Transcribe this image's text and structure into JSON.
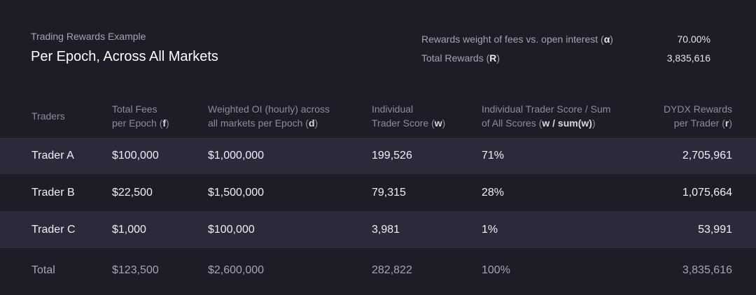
{
  "header": {
    "subtitle": "Trading Rewards Example",
    "title": "Per Epoch, Across All Markets",
    "weight_label_prefix": "Rewards weight of fees vs. open interest (",
    "weight_symbol": "α",
    "weight_label_suffix": ")",
    "weight_value": "70.00%",
    "total_rewards_label_prefix": "Total Rewards (",
    "total_rewards_symbol": "R",
    "total_rewards_label_suffix": ")",
    "total_rewards_value": "3,835,616"
  },
  "columns": {
    "traders": "Traders",
    "fees_line1": "Total Fees",
    "fees_line2_prefix": "per Epoch (",
    "fees_symbol": "f",
    "fees_line2_suffix": ")",
    "oi_line1": "Weighted OI (hourly) across",
    "oi_line2_prefix": "all markets per Epoch (",
    "oi_symbol": "d",
    "oi_line2_suffix": ")",
    "score_line1": "Individual",
    "score_line2_prefix": "Trader Score (",
    "score_symbol": "w",
    "score_line2_suffix": ")",
    "share_line1": "Individual Trader Score / Sum",
    "share_line2_prefix": "of All Scores (",
    "share_symbol": "w / sum(w)",
    "share_line2_suffix": ")",
    "rewards_line1": "DYDX Rewards",
    "rewards_line2_prefix": "per Trader (",
    "rewards_symbol": "r",
    "rewards_line2_suffix": ")"
  },
  "rows": [
    {
      "trader": "Trader A",
      "fees": "$100,000",
      "oi": "$1,000,000",
      "score": "199,526",
      "share": "71%",
      "rewards": "2,705,961"
    },
    {
      "trader": "Trader B",
      "fees": "$22,500",
      "oi": "$1,500,000",
      "score": "79,315",
      "share": "28%",
      "rewards": "1,075,664"
    },
    {
      "trader": "Trader C",
      "fees": "$1,000",
      "oi": "$100,000",
      "score": "3,981",
      "share": "1%",
      "rewards": "53,991"
    }
  ],
  "total": {
    "trader": "Total",
    "fees": "$123,500",
    "oi": "$2,600,000",
    "score": "282,822",
    "share": "100%",
    "rewards": "3,835,616"
  }
}
